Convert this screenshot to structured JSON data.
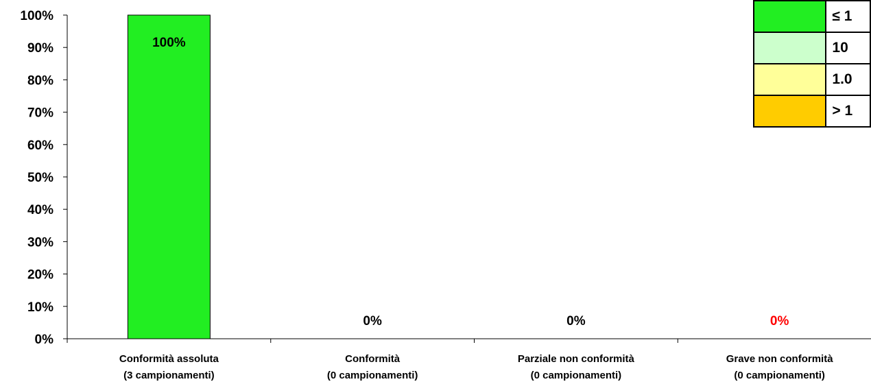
{
  "chart_data": {
    "type": "bar",
    "categories": [
      [
        "Conformità assoluta",
        "(3 campionamenti)"
      ],
      [
        "Conformità",
        "(0 campionamenti)"
      ],
      [
        "Parziale non conformità",
        "(0 campionamenti)"
      ],
      [
        "Grave non conformità",
        "(0 campionamenti)"
      ]
    ],
    "values": [
      100,
      0,
      0,
      0
    ],
    "data_labels": [
      "100%",
      "0%",
      "0%",
      "0%"
    ],
    "data_label_colors": [
      "#000000",
      "#000000",
      "#000000",
      "#ff0000"
    ],
    "bar_color": "#22ee22",
    "ylim": [
      0,
      100
    ],
    "yticks": [
      "0%",
      "10%",
      "20%",
      "30%",
      "40%",
      "50%",
      "60%",
      "70%",
      "80%",
      "90%",
      "100%"
    ],
    "grid": false,
    "legend_position": "top-right"
  },
  "legend": [
    {
      "color": "#22ee22",
      "text": "≤ 1"
    },
    {
      "color": "#ccffcc",
      "text": "10"
    },
    {
      "color": "#ffff99",
      "text": "1.0"
    },
    {
      "color": "#ffcc00",
      "text": "> 1"
    }
  ]
}
